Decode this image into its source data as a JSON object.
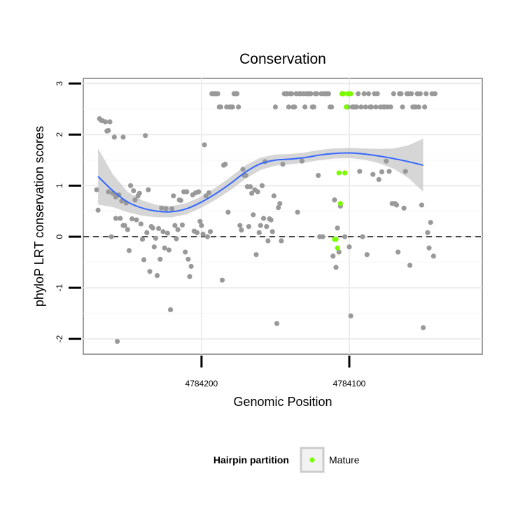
{
  "chart_data": {
    "type": "scatter",
    "title": "Conservation",
    "xlabel": "Genomic Position",
    "ylabel": "phyloP LRT conservation scores",
    "x_reversed": true,
    "xlim": [
      4784280,
      4784010
    ],
    "ylim": [
      -2.3,
      3.1
    ],
    "x_ticks": [
      {
        "value": 4784200,
        "label": "4784200"
      },
      {
        "value": 4784100,
        "label": "4784100"
      }
    ],
    "y_ticks": [
      {
        "value": 3,
        "label": "3"
      },
      {
        "value": 2,
        "label": "2"
      },
      {
        "value": 1,
        "label": "1"
      },
      {
        "value": 0,
        "label": "0"
      },
      {
        "value": -1,
        "label": "-1"
      },
      {
        "value": -2,
        "label": "-2"
      }
    ],
    "reference_line": {
      "y": 0,
      "style": "dashed"
    },
    "grid": true,
    "legend": {
      "title": "Hairpin partition",
      "placement": "bottom",
      "entries": [
        {
          "label": "Mature",
          "color": "#7cfc00"
        }
      ]
    },
    "colors": {
      "points": "#999999",
      "mature": "#7cfc00",
      "smooth": "#3366ff",
      "band": "#d3d3d3"
    },
    "series": [
      {
        "key": "other",
        "points": [
          [
            4784271,
            0.92
          ],
          [
            4784270,
            0.52
          ],
          [
            4784269,
            2.31
          ],
          [
            4784268,
            2.28
          ],
          [
            4784267,
            2.27
          ],
          [
            4784265,
            2.25
          ],
          [
            4784264,
            2.07
          ],
          [
            4784263,
            2.08
          ],
          [
            4784263,
            0.88
          ],
          [
            4784262,
            2.25
          ],
          [
            4784261,
            0.0
          ],
          [
            4784260,
            0.85
          ],
          [
            4784259,
            1.95
          ],
          [
            4784258,
            0.78
          ],
          [
            4784258,
            0.36
          ],
          [
            4784257,
            -2.05
          ],
          [
            4784256,
            0.82
          ],
          [
            4784255,
            0.36
          ],
          [
            4784254,
            0.7
          ],
          [
            4784253,
            0.22
          ],
          [
            4784253,
            1.95
          ],
          [
            4784252,
            0.22
          ],
          [
            4784251,
            0.66
          ],
          [
            4784250,
            0.14
          ],
          [
            4784249,
            -0.27
          ],
          [
            4784248,
            1.0
          ],
          [
            4784247,
            0.35
          ],
          [
            4784246,
            0.9
          ],
          [
            4784245,
            0.72
          ],
          [
            4784244,
            0.33
          ],
          [
            4784243,
            0.8
          ],
          [
            4784242,
            0.85
          ],
          [
            4784241,
            0.25
          ],
          [
            4784240,
            -0.05
          ],
          [
            4784239,
            -0.45
          ],
          [
            4784238,
            1.98
          ],
          [
            4784237,
            0.08
          ],
          [
            4784236,
            0.92
          ],
          [
            4784235,
            -0.68
          ],
          [
            4784234,
            0.2
          ],
          [
            4784233,
            0.17
          ],
          [
            4784232,
            -0.2
          ],
          [
            4784231,
            -0.03
          ],
          [
            4784230,
            -0.76
          ],
          [
            4784229,
            0.16
          ],
          [
            4784228,
            -0.44
          ],
          [
            4784227,
            0.56
          ],
          [
            4784226,
            0.1
          ],
          [
            4784225,
            -0.22
          ],
          [
            4784224,
            0.55
          ],
          [
            4784223,
            0.07
          ],
          [
            4784222,
            -0.26
          ],
          [
            4784221,
            -1.43
          ],
          [
            4784220,
            0.55
          ],
          [
            4784219,
            0.8
          ],
          [
            4784218,
            0.22
          ],
          [
            4784217,
            -0.04
          ],
          [
            4784216,
            0.14
          ],
          [
            4784215,
            0.72
          ],
          [
            4784214,
            0.71
          ],
          [
            4784213,
            0.23
          ],
          [
            4784212,
            0.88
          ],
          [
            4784211,
            -0.3
          ],
          [
            4784210,
            0.88
          ],
          [
            4784209,
            -0.44
          ],
          [
            4784208,
            -0.78
          ],
          [
            4784207,
            -0.58
          ],
          [
            4784206,
            0.82
          ],
          [
            4784205,
            0.11
          ],
          [
            4784204,
            0.86
          ],
          [
            4784203,
            0.08
          ],
          [
            4784202,
            0.88
          ],
          [
            4784201,
            0.3
          ],
          [
            4784200,
            0.22
          ],
          [
            4784199,
            0.05
          ],
          [
            4784198,
            1.8
          ],
          [
            4784197,
            0.8
          ],
          [
            4784196,
            0.0
          ],
          [
            4784195,
            0.86
          ],
          [
            4784194,
            0.1
          ],
          [
            4784193,
            2.8
          ],
          [
            4784192,
            2.8
          ],
          [
            4784191,
            2.8
          ],
          [
            4784190,
            2.8
          ],
          [
            4784189,
            2.8
          ],
          [
            4784188,
            2.54
          ],
          [
            4784187,
            2.54
          ],
          [
            4784186,
            -0.85
          ],
          [
            4784185,
            1.4
          ],
          [
            4784184,
            1.42
          ],
          [
            4784183,
            2.54
          ],
          [
            4784182,
            0.48
          ],
          [
            4784181,
            2.54
          ],
          [
            4784180,
            2.54
          ],
          [
            4784179,
            2.54
          ],
          [
            4784178,
            2.8
          ],
          [
            4784177,
            2.8
          ],
          [
            4784176,
            2.8
          ],
          [
            4784175,
            2.54
          ],
          [
            4784174,
            0.22
          ],
          [
            4784173,
            0.13
          ],
          [
            4784172,
            1.32
          ],
          [
            4784171,
            1.2
          ],
          [
            4784170,
            1.2
          ],
          [
            4784169,
            0.98
          ],
          [
            4784168,
            0.2
          ],
          [
            4784167,
            0.98
          ],
          [
            4784166,
            0.85
          ],
          [
            4784165,
            0.43
          ],
          [
            4784164,
            0.92
          ],
          [
            4784163,
            -0.35
          ],
          [
            4784162,
            0.88
          ],
          [
            4784161,
            0.08
          ],
          [
            4784160,
            0.22
          ],
          [
            4784159,
            1.0
          ],
          [
            4784158,
            0.36
          ],
          [
            4784157,
            1.47
          ],
          [
            4784156,
            0.2
          ],
          [
            4784155,
            -0.08
          ],
          [
            4784154,
            0.35
          ],
          [
            4784153,
            0.33
          ],
          [
            4784152,
            0.1
          ],
          [
            4784151,
            0.8
          ],
          [
            4784150,
            2.54
          ],
          [
            4784149,
            -1.7
          ],
          [
            4784148,
            0.57
          ],
          [
            4784147,
            0.65
          ],
          [
            4784146,
            -0.08
          ],
          [
            4784145,
            1.42
          ],
          [
            4784144,
            2.8
          ],
          [
            4784143,
            2.8
          ],
          [
            4784142,
            2.8
          ],
          [
            4784141,
            2.54
          ],
          [
            4784140,
            2.8
          ],
          [
            4784139,
            2.8
          ],
          [
            4784138,
            2.54
          ],
          [
            4784137,
            2.54
          ],
          [
            4784136,
            2.8
          ],
          [
            4784135,
            0.48
          ],
          [
            4784134,
            2.8
          ],
          [
            4784133,
            2.8
          ],
          [
            4784132,
            1.48
          ],
          [
            4784131,
            2.8
          ],
          [
            4784130,
            2.54
          ],
          [
            4784129,
            2.8
          ],
          [
            4784128,
            2.8
          ],
          [
            4784127,
            2.8
          ],
          [
            4784126,
            2.8
          ],
          [
            4784125,
            2.54
          ],
          [
            4784124,
            2.54
          ],
          [
            4784123,
            2.8
          ],
          [
            4784122,
            2.8
          ],
          [
            4784121,
            1.2
          ],
          [
            4784120,
            0.0
          ],
          [
            4784119,
            2.8
          ],
          [
            4784118,
            0.0
          ],
          [
            4784117,
            2.8
          ],
          [
            4784116,
            2.8
          ],
          [
            4784115,
            2.8
          ],
          [
            4784114,
            2.8
          ],
          [
            4784113,
            2.54
          ],
          [
            4784112,
            2.54
          ],
          [
            4784111,
            -0.38
          ],
          [
            4784110,
            0.72
          ],
          [
            4784109,
            -0.6
          ],
          [
            4784108,
            0.17
          ],
          [
            4784107,
            -0.3
          ],
          [
            4784106,
            0.6
          ],
          [
            4784105,
            2.8
          ],
          [
            4784104,
            2.8
          ],
          [
            4784103,
            0.0
          ],
          [
            4784102,
            2.54
          ],
          [
            4784101,
            2.54
          ],
          [
            4784100,
            -0.2
          ],
          [
            4784099,
            -1.55
          ],
          [
            4784098,
            2.54
          ],
          [
            4784097,
            2.54
          ],
          [
            4784096,
            2.54
          ],
          [
            4784095,
            2.54
          ],
          [
            4784094,
            2.8
          ],
          [
            4784093,
            1.28
          ],
          [
            4784092,
            2.54
          ],
          [
            4784091,
            0.0
          ],
          [
            4784090,
            2.8
          ],
          [
            4784089,
            2.54
          ],
          [
            4784088,
            -0.35
          ],
          [
            4784087,
            2.8
          ],
          [
            4784086,
            2.54
          ],
          [
            4784085,
            2.54
          ],
          [
            4784084,
            1.22
          ],
          [
            4784083,
            2.8
          ],
          [
            4784082,
            2.54
          ],
          [
            4784081,
            2.8
          ],
          [
            4784080,
            1.12
          ],
          [
            4784079,
            2.54
          ],
          [
            4784078,
            1.27
          ],
          [
            4784077,
            2.54
          ],
          [
            4784076,
            2.54
          ],
          [
            4784075,
            1.48
          ],
          [
            4784074,
            2.54
          ],
          [
            4784073,
            1.28
          ],
          [
            4784072,
            2.54
          ],
          [
            4784071,
            0.65
          ],
          [
            4784070,
            2.8
          ],
          [
            4784069,
            0.65
          ],
          [
            4784068,
            0.62
          ],
          [
            4784067,
            -0.3
          ],
          [
            4784066,
            2.8
          ],
          [
            4784065,
            2.8
          ],
          [
            4784064,
            2.54
          ],
          [
            4784063,
            0.56
          ],
          [
            4784062,
            1.28
          ],
          [
            4784061,
            2.8
          ],
          [
            4784060,
            2.8
          ],
          [
            4784059,
            -0.56
          ],
          [
            4784058,
            2.8
          ],
          [
            4784057,
            2.54
          ],
          [
            4784056,
            2.54
          ],
          [
            4784055,
            2.54
          ],
          [
            4784054,
            2.8
          ],
          [
            4784053,
            2.54
          ],
          [
            4784052,
            2.8
          ],
          [
            4784051,
            0.62
          ],
          [
            4784050,
            -1.78
          ],
          [
            4784049,
            2.54
          ],
          [
            4784048,
            2.8
          ],
          [
            4784047,
            0.08
          ],
          [
            4784046,
            -0.22
          ],
          [
            4784045,
            0.28
          ],
          [
            4784044,
            2.8
          ],
          [
            4784043,
            -0.38
          ],
          [
            4784042,
            2.8
          ]
        ]
      },
      {
        "key": "mature",
        "name": "Mature",
        "points": [
          [
            4784110,
            -0.05
          ],
          [
            4784109,
            -0.05
          ],
          [
            4784108,
            -0.22
          ],
          [
            4784107,
            1.25
          ],
          [
            4784106,
            0.65
          ],
          [
            4784105,
            2.8
          ],
          [
            4784104,
            2.8
          ],
          [
            4784103,
            1.25
          ],
          [
            4784102,
            2.54
          ],
          [
            4784101,
            2.8
          ],
          [
            4784100,
            2.8
          ],
          [
            4784099,
            2.8
          ]
        ]
      }
    ],
    "smooth": [
      [
        4784270,
        1.18
      ],
      [
        4784260,
        0.9
      ],
      [
        4784250,
        0.68
      ],
      [
        4784240,
        0.56
      ],
      [
        4784230,
        0.5
      ],
      [
        4784220,
        0.49
      ],
      [
        4784210,
        0.55
      ],
      [
        4784200,
        0.68
      ],
      [
        4784190,
        0.85
      ],
      [
        4784180,
        1.05
      ],
      [
        4784170,
        1.27
      ],
      [
        4784160,
        1.43
      ],
      [
        4784150,
        1.5
      ],
      [
        4784140,
        1.52
      ],
      [
        4784130,
        1.55
      ],
      [
        4784120,
        1.6
      ],
      [
        4784110,
        1.63
      ],
      [
        4784100,
        1.64
      ],
      [
        4784090,
        1.62
      ],
      [
        4784080,
        1.58
      ],
      [
        4784070,
        1.53
      ],
      [
        4784060,
        1.47
      ],
      [
        4784050,
        1.4
      ]
    ],
    "smooth_se": [
      [
        4784270,
        0.55
      ],
      [
        4784260,
        0.32
      ],
      [
        4784250,
        0.2
      ],
      [
        4784240,
        0.15
      ],
      [
        4784230,
        0.12
      ],
      [
        4784220,
        0.11
      ],
      [
        4784210,
        0.11
      ],
      [
        4784200,
        0.11
      ],
      [
        4784190,
        0.12
      ],
      [
        4784180,
        0.13
      ],
      [
        4784170,
        0.13
      ],
      [
        4784160,
        0.12
      ],
      [
        4784150,
        0.11
      ],
      [
        4784140,
        0.1
      ],
      [
        4784130,
        0.1
      ],
      [
        4784120,
        0.1
      ],
      [
        4784110,
        0.1
      ],
      [
        4784100,
        0.1
      ],
      [
        4784090,
        0.11
      ],
      [
        4784080,
        0.14
      ],
      [
        4784070,
        0.2
      ],
      [
        4784060,
        0.32
      ],
      [
        4784050,
        0.52
      ]
    ]
  }
}
